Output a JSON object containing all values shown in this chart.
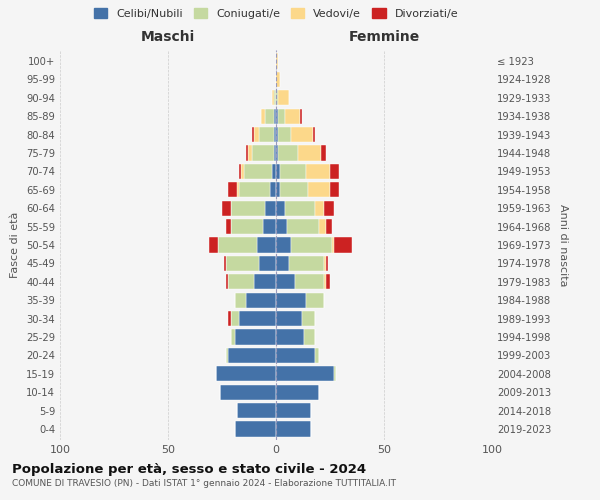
{
  "age_groups": [
    "0-4",
    "5-9",
    "10-14",
    "15-19",
    "20-24",
    "25-29",
    "30-34",
    "35-39",
    "40-44",
    "45-49",
    "50-54",
    "55-59",
    "60-64",
    "65-69",
    "70-74",
    "75-79",
    "80-84",
    "85-89",
    "90-94",
    "95-99",
    "100+"
  ],
  "birth_years": [
    "2019-2023",
    "2014-2018",
    "2009-2013",
    "2004-2008",
    "1999-2003",
    "1994-1998",
    "1989-1993",
    "1984-1988",
    "1979-1983",
    "1974-1978",
    "1969-1973",
    "1964-1968",
    "1959-1963",
    "1954-1958",
    "1949-1953",
    "1944-1948",
    "1939-1943",
    "1934-1938",
    "1929-1933",
    "1924-1928",
    "≤ 1923"
  ],
  "males": {
    "celibi": [
      19,
      18,
      26,
      28,
      22,
      19,
      17,
      14,
      10,
      8,
      9,
      6,
      5,
      3,
      2,
      1,
      1,
      1,
      0,
      0,
      0
    ],
    "coniugati": [
      0,
      0,
      0,
      0,
      1,
      2,
      4,
      5,
      12,
      15,
      18,
      15,
      16,
      14,
      13,
      10,
      7,
      4,
      1,
      0,
      0
    ],
    "vedovi": [
      0,
      0,
      0,
      0,
      0,
      0,
      0,
      0,
      0,
      0,
      0,
      0,
      0,
      1,
      1,
      2,
      2,
      2,
      1,
      0,
      0
    ],
    "divorziati": [
      0,
      0,
      0,
      0,
      0,
      0,
      1,
      0,
      1,
      1,
      4,
      2,
      4,
      4,
      1,
      1,
      1,
      0,
      0,
      0,
      0
    ]
  },
  "females": {
    "nubili": [
      16,
      16,
      20,
      27,
      18,
      13,
      12,
      14,
      9,
      6,
      7,
      5,
      4,
      2,
      2,
      1,
      1,
      1,
      0,
      0,
      0
    ],
    "coniugate": [
      0,
      0,
      0,
      1,
      2,
      5,
      6,
      8,
      13,
      16,
      19,
      15,
      14,
      13,
      12,
      9,
      6,
      3,
      1,
      0,
      0
    ],
    "vedove": [
      0,
      0,
      0,
      0,
      0,
      0,
      0,
      0,
      1,
      1,
      1,
      3,
      4,
      10,
      11,
      11,
      10,
      7,
      5,
      2,
      1
    ],
    "divorziate": [
      0,
      0,
      0,
      0,
      0,
      0,
      0,
      0,
      2,
      1,
      8,
      3,
      5,
      4,
      4,
      2,
      1,
      1,
      0,
      0,
      0
    ]
  },
  "colors": {
    "celibi": "#4472a8",
    "coniugati": "#c5d9a0",
    "vedovi": "#fcd88a",
    "divorziati": "#cc2222"
  },
  "xlim": 100,
  "title": "Popolazione per età, sesso e stato civile - 2024",
  "subtitle": "COMUNE DI TRAVESIO (PN) - Dati ISTAT 1° gennaio 2024 - Elaborazione TUTTITALIA.IT",
  "ylabel_left": "Fasce di età",
  "ylabel_right": "Anni di nascita",
  "xlabel_left": "Maschi",
  "xlabel_right": "Femmine",
  "legend_labels": [
    "Celibi/Nubili",
    "Coniugati/e",
    "Vedovi/e",
    "Divorziati/e"
  ],
  "bg_color": "#f5f5f5"
}
